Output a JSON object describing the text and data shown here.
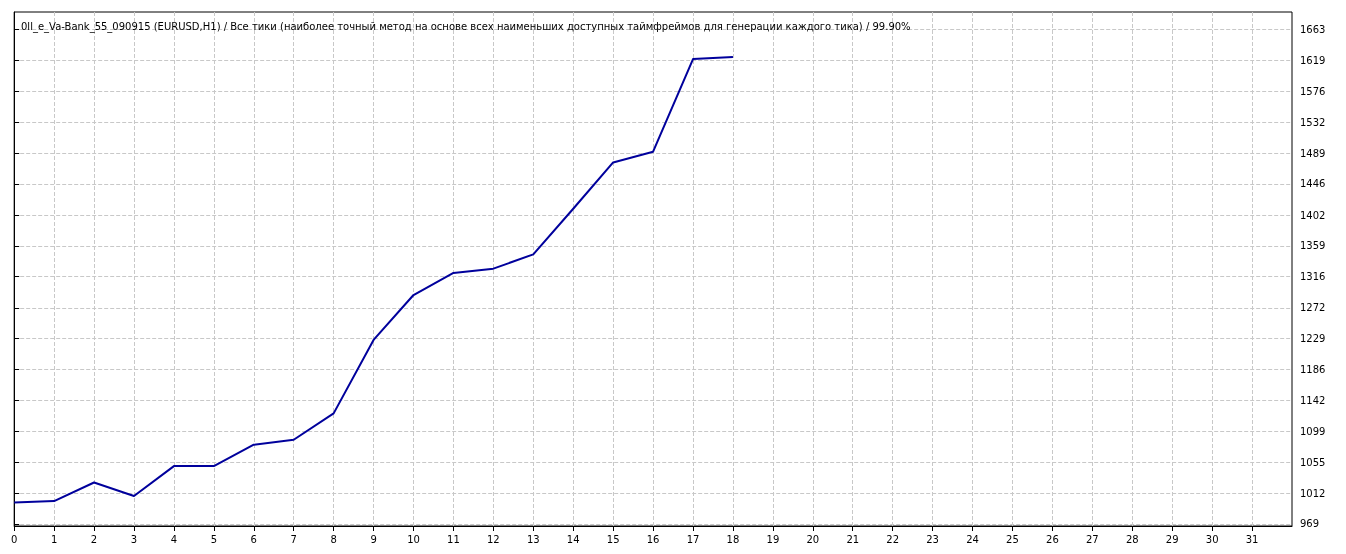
{
  "chart_data": {
    "type": "line",
    "title": "0ll_e_Va-Bank_55_090915 (EURUSD,H1) / Все тики (наиболее точный метод на основе всех наименьших доступных таймфреймов для генерации каждого тика) / 99.90%",
    "x": [
      0,
      1,
      2,
      3,
      4,
      5,
      6,
      7,
      8,
      9,
      10,
      11,
      12,
      13,
      14,
      15,
      16,
      17,
      18
    ],
    "series": [
      {
        "color": "#00009c",
        "values": [
          999,
          1001,
          1027,
          1008,
          1050,
          1050,
          1080,
          1087,
          1124,
          1227,
          1290,
          1321,
          1327,
          1347,
          1411,
          1476,
          1491,
          1621,
          1624
        ]
      }
    ],
    "xlim": [
      0,
      32
    ],
    "xticks": [
      0,
      1,
      2,
      3,
      4,
      5,
      6,
      7,
      8,
      9,
      10,
      11,
      12,
      13,
      14,
      15,
      16,
      17,
      18,
      19,
      20,
      21,
      22,
      23,
      24,
      25,
      26,
      27,
      28,
      29,
      30,
      31
    ],
    "ylim": [
      966,
      1687
    ],
    "yticks": [
      969,
      1012,
      1055,
      1099,
      1142,
      1186,
      1229,
      1272,
      1316,
      1359,
      1402,
      1446,
      1489,
      1532,
      1576,
      1619,
      1663
    ],
    "grid": true,
    "marker": "none",
    "line_style": "solid"
  }
}
